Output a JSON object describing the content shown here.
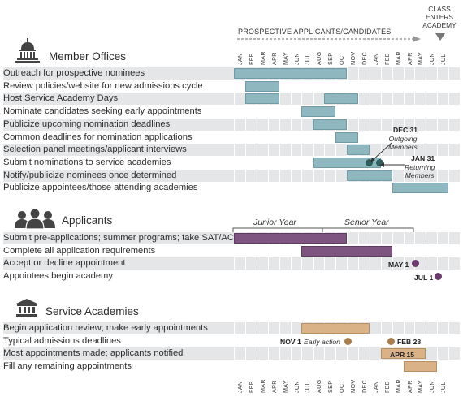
{
  "header": {
    "prospective_label": "PROSPECTIVE APPLICANTS/CANDIDATES",
    "class_enters": [
      "CLASS",
      "ENTERS",
      "ACADEMY"
    ]
  },
  "months": [
    "JAN",
    "FEB",
    "MAR",
    "APR",
    "MAY",
    "JUN",
    "JUL",
    "AUG",
    "SEP",
    "OCT",
    "NOV",
    "DEC",
    "JAN",
    "FEB",
    "MAR",
    "APR",
    "MAY",
    "JUN",
    "JUL"
  ],
  "sections": {
    "member_offices": {
      "title": "Member Offices",
      "rows": [
        "Outreach for prospective nominees",
        "Review policies/website for new admissions cycle",
        "Host Service Academy Days",
        "Nominate candidates seeking early appointments",
        "Publicize upcoming nomination deadlines",
        "Common deadlines for nomination applications",
        "Selection panel meetings/applicant interviews",
        "Submit nominations to service academies",
        "Notify/publicize nominees once determined",
        "Publicize appointees/those attending academies"
      ],
      "annotations": {
        "dec31": "DEC 31",
        "outgoing": [
          "Outgoing",
          "Members"
        ],
        "jan31": "JAN 31",
        "returning": [
          "Returning",
          "Members"
        ]
      }
    },
    "applicants": {
      "title": "Applicants",
      "junior_year": "Junior Year",
      "senior_year": "Senior Year",
      "rows": [
        "Submit pre-applications; summer programs; take SAT/ACT",
        "Complete all application requirements",
        "Accept or decline appointment",
        "Appointees begin academy"
      ],
      "annotations": {
        "may1": "MAY 1",
        "jul1": "JUL 1"
      }
    },
    "service_academies": {
      "title": "Service Academies",
      "rows": [
        "Begin application review;  make early appointments",
        "Typical admissions deadlines",
        "Most appointments made; applicants notified",
        "Fill any remaining appointments"
      ],
      "annotations": {
        "nov1": "NOV 1",
        "early_action": "Early action",
        "feb28": "FEB 28",
        "apr15": "APR 15"
      }
    }
  },
  "colors": {
    "member_offices": "#8fb7c0",
    "applicants": "#7e5480",
    "service_academies": "#d9b287",
    "row_shade": "#e4e6e8",
    "teal_dot": "#2f5e5c",
    "purple_dot": "#6a3b6c",
    "tan_dot": "#a87e4f"
  },
  "icons": {
    "member_offices": "capitol-icon",
    "applicants": "people-icon",
    "service_academies": "building-columns-icon"
  }
}
